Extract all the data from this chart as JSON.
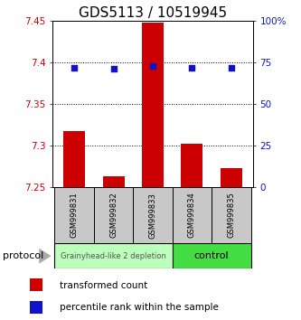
{
  "title": "GDS5113 / 10519945",
  "samples": [
    "GSM999831",
    "GSM999832",
    "GSM999833",
    "GSM999834",
    "GSM999835"
  ],
  "bar_values": [
    7.317,
    7.263,
    7.448,
    7.302,
    7.273
  ],
  "bar_base": 7.25,
  "percentile_values": [
    72,
    71,
    73,
    72,
    72
  ],
  "ylim_left": [
    7.25,
    7.45
  ],
  "ylim_right": [
    0,
    100
  ],
  "yticks_left": [
    7.25,
    7.3,
    7.35,
    7.4,
    7.45
  ],
  "yticks_right": [
    0,
    25,
    50,
    75,
    100
  ],
  "ytick_labels_left": [
    "7.25",
    "7.3",
    "7.35",
    "7.4",
    "7.45"
  ],
  "ytick_labels_right": [
    "0",
    "25",
    "50",
    "75",
    "100%"
  ],
  "bar_color": "#cc0000",
  "percentile_color": "#1111cc",
  "dotted_line_color": "#000000",
  "group1_label": "Grainyhead-like 2 depletion",
  "group2_label": "control",
  "group1_color": "#bbffbb",
  "group2_color": "#44dd44",
  "group1_samples": [
    0,
    1,
    2
  ],
  "group2_samples": [
    3,
    4
  ],
  "protocol_label": "protocol",
  "legend_bar_label": "transformed count",
  "legend_percentile_label": "percentile rank within the sample",
  "left_tick_color": "#cc0000",
  "right_tick_color": "#1111cc",
  "title_fontsize": 11,
  "tick_fontsize": 7.5,
  "sample_fontsize": 6,
  "group_fontsize1": 6,
  "group_fontsize2": 8,
  "legend_fontsize": 7.5,
  "protocol_fontsize": 8
}
